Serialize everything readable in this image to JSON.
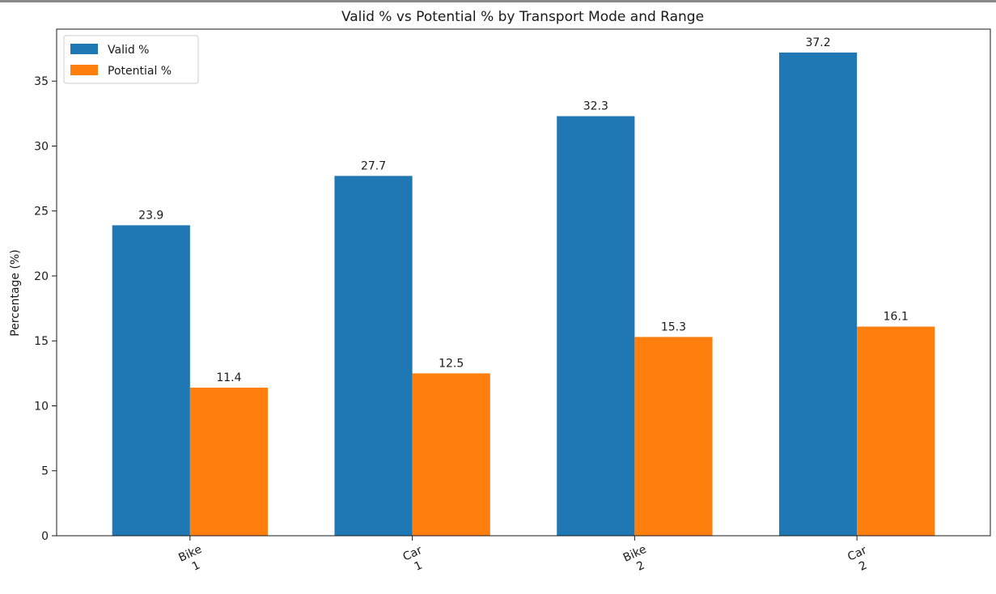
{
  "chart_data": {
    "type": "bar",
    "title": "Valid % vs Potential % by Transport Mode and Range",
    "xlabel": "",
    "ylabel": "Percentage (%)",
    "categories": [
      "Bike\n1",
      "Car\n1",
      "Bike\n2",
      "Car\n2"
    ],
    "category_lines": [
      [
        "Bike",
        "1"
      ],
      [
        "Car",
        "1"
      ],
      [
        "Bike",
        "2"
      ],
      [
        "Car",
        "2"
      ]
    ],
    "series": [
      {
        "name": "Valid %",
        "color": "#1f77b4",
        "values": [
          23.9,
          27.7,
          32.3,
          37.2
        ]
      },
      {
        "name": "Potential %",
        "color": "#ff7f0e",
        "values": [
          11.4,
          12.5,
          15.3,
          16.1
        ]
      }
    ],
    "ylim": [
      0,
      39
    ],
    "yticks": [
      0,
      5,
      10,
      15,
      20,
      25,
      30,
      35
    ],
    "grid": false,
    "legend": "top-left"
  }
}
